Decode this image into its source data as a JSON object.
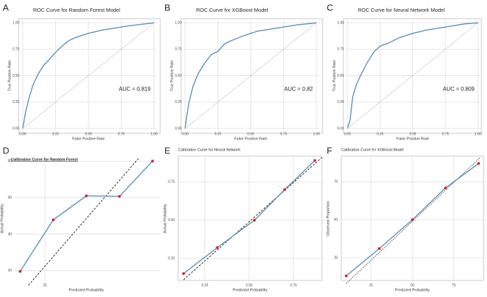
{
  "chart_data": [
    {
      "type": "line",
      "label": "A",
      "title": "ROC Curve for Random Forest Model",
      "xlabel": "False Positive Rate",
      "ylabel": "True Positive Rate",
      "annotation": "AUC = 0.819",
      "xlim": [
        0,
        1
      ],
      "ylim": [
        0,
        1
      ],
      "xticks": [
        {
          "value": 0,
          "label": "0.00"
        },
        {
          "value": 0.25,
          "label": "0.25"
        },
        {
          "value": 0.5,
          "label": "0.50"
        },
        {
          "value": 0.75,
          "label": "0.75"
        },
        {
          "value": 1,
          "label": "1.00"
        }
      ],
      "yticks": [
        {
          "value": 0,
          "label": "0.00"
        },
        {
          "value": 0.25,
          "label": "0.25"
        },
        {
          "value": 0.5,
          "label": "0.50"
        },
        {
          "value": 0.75,
          "label": "0.75"
        },
        {
          "value": 1,
          "label": "1.00"
        }
      ],
      "grid": true,
      "series": [
        {
          "x": [
            0,
            0.02,
            0.05,
            0.08,
            0.12,
            0.16,
            0.2,
            0.25,
            0.3,
            0.35,
            0.4,
            0.5,
            0.6,
            0.7,
            0.8,
            0.9,
            1
          ],
          "values": [
            0,
            0.15,
            0.3,
            0.42,
            0.52,
            0.6,
            0.65,
            0.72,
            0.78,
            0.83,
            0.86,
            0.9,
            0.93,
            0.95,
            0.97,
            0.985,
            1
          ],
          "color": "#5b8db8"
        },
        {
          "x": [
            0,
            1
          ],
          "values": [
            0,
            1
          ],
          "color": "#aaaaaa",
          "dash": "dotted"
        }
      ]
    },
    {
      "type": "line",
      "label": "B",
      "title": "ROC Curve for XGBoost Model",
      "xlabel": "False Positive Rate",
      "ylabel": "True Positive Rate",
      "annotation": "AUC = 0.82",
      "xlim": [
        0,
        1
      ],
      "ylim": [
        0,
        1
      ],
      "xticks": [
        {
          "value": 0,
          "label": "0.00"
        },
        {
          "value": 0.25,
          "label": "0.25"
        },
        {
          "value": 0.5,
          "label": "0.50"
        },
        {
          "value": 0.75,
          "label": "0.75"
        },
        {
          "value": 1,
          "label": "1.00"
        }
      ],
      "yticks": [
        {
          "value": 0,
          "label": "0.00"
        },
        {
          "value": 0.25,
          "label": "0.25"
        },
        {
          "value": 0.5,
          "label": "0.50"
        },
        {
          "value": 0.75,
          "label": "0.75"
        },
        {
          "value": 1,
          "label": "1.00"
        }
      ],
      "grid": true,
      "series": [
        {
          "x": [
            0,
            0.01,
            0.03,
            0.06,
            0.1,
            0.15,
            0.2,
            0.25,
            0.3,
            0.35,
            0.45,
            0.55,
            0.65,
            0.75,
            0.85,
            1
          ],
          "values": [
            0,
            0.1,
            0.25,
            0.4,
            0.52,
            0.62,
            0.7,
            0.73,
            0.8,
            0.83,
            0.88,
            0.92,
            0.94,
            0.96,
            0.98,
            1
          ],
          "color": "#5b8db8"
        },
        {
          "x": [
            0,
            1
          ],
          "values": [
            0,
            1
          ],
          "color": "#aaaaaa",
          "dash": "dotted"
        }
      ]
    },
    {
      "type": "line",
      "label": "C",
      "title": "ROC Curve for Neural Network Model",
      "xlabel": "False Positive Rate",
      "ylabel": "True Positive Rate",
      "annotation": "AUC = 0.809",
      "xlim": [
        0,
        1
      ],
      "ylim": [
        0,
        1
      ],
      "xticks": [
        {
          "value": 0,
          "label": "0.00"
        },
        {
          "value": 0.25,
          "label": "0.25"
        },
        {
          "value": 0.5,
          "label": "0.50"
        },
        {
          "value": 0.75,
          "label": "0.75"
        },
        {
          "value": 1,
          "label": "1.00"
        }
      ],
      "yticks": [
        {
          "value": 0,
          "label": "0.00"
        },
        {
          "value": 0.25,
          "label": "0.25"
        },
        {
          "value": 0.5,
          "label": "0.50"
        },
        {
          "value": 0.75,
          "label": "0.75"
        },
        {
          "value": 1,
          "label": "1.00"
        }
      ],
      "grid": true,
      "series": [
        {
          "x": [
            0,
            0.02,
            0.04,
            0.07,
            0.1,
            0.15,
            0.2,
            0.25,
            0.3,
            0.4,
            0.5,
            0.6,
            0.7,
            0.8,
            0.9,
            1
          ],
          "values": [
            0,
            0.08,
            0.3,
            0.42,
            0.5,
            0.62,
            0.72,
            0.78,
            0.8,
            0.86,
            0.9,
            0.93,
            0.95,
            0.97,
            0.99,
            1
          ],
          "color": "#5b8db8"
        },
        {
          "x": [
            0,
            1
          ],
          "values": [
            0,
            1
          ],
          "color": "#aaaaaa",
          "dash": "dotted"
        }
      ]
    },
    {
      "type": "line",
      "label": "D",
      "title": "Calibration Curve for Random Forest",
      "xlabel": "Predicted Probability",
      "ylabel": "Actual Probability",
      "xlim": [
        7,
        93
      ],
      "ylim": [
        15,
        82
      ],
      "xticks": [
        25
      ],
      "yticks": [
        20,
        40,
        60,
        80
      ],
      "grid": true,
      "series": [
        {
          "x": [
            15,
            82
          ],
          "values": [
            12,
            82
          ],
          "color": "#111111",
          "dash": "dashed"
        },
        {
          "x": [
            10,
            30,
            50,
            70,
            90
          ],
          "values": [
            19.6,
            47.8,
            61,
            60.7,
            80
          ],
          "color": "#5b8db8",
          "markers": "#d62728"
        }
      ]
    },
    {
      "type": "line",
      "label": "E",
      "title": "Calibration Curve for Neural Network",
      "xlabel": "Predicted Probability",
      "ylabel": "Actual Probability",
      "xlim": [
        0.1,
        0.91
      ],
      "ylim": [
        0.11,
        0.91
      ],
      "xticks": [
        {
          "value": 0.25,
          "label": "0.25"
        },
        {
          "value": 0.5,
          "label": "0.50"
        },
        {
          "value": 0.75,
          "label": "0.75"
        }
      ],
      "yticks": [
        {
          "value": 0.25,
          "label": "0.25"
        },
        {
          "value": 0.5,
          "label": "0.50"
        },
        {
          "value": 0.75,
          "label": "0.75"
        }
      ],
      "grid": true,
      "series": [
        {
          "x": [
            0.13,
            0.91
          ],
          "values": [
            0.11,
            0.91
          ],
          "color": "#111111",
          "dash": "dashed"
        },
        {
          "x": [
            0.13,
            0.32,
            0.53,
            0.7,
            0.87
          ],
          "values": [
            0.15,
            0.32,
            0.5,
            0.7,
            0.89
          ],
          "color": "#5b8db8",
          "markers": "#d62728"
        }
      ]
    },
    {
      "type": "line",
      "label": "F",
      "title": "Calibration Curve for XGBoost Model",
      "xlabel": "Predicted Probability",
      "ylabel": "Observed Proportion",
      "xlim": [
        7,
        93
      ],
      "ylim": [
        10.5,
        91
      ],
      "xticks": [
        25,
        50,
        75
      ],
      "yticks": [
        25,
        50,
        75
      ],
      "grid": true,
      "series": [
        {
          "x": [
            10,
            91
          ],
          "values": [
            8,
            91
          ],
          "color": "#333333",
          "dash": "dotted"
        },
        {
          "x": [
            10,
            30,
            50,
            70,
            90
          ],
          "values": [
            13,
            31,
            50,
            71,
            87
          ],
          "color": "#5b8db8",
          "markers": "#d62728"
        }
      ]
    }
  ]
}
